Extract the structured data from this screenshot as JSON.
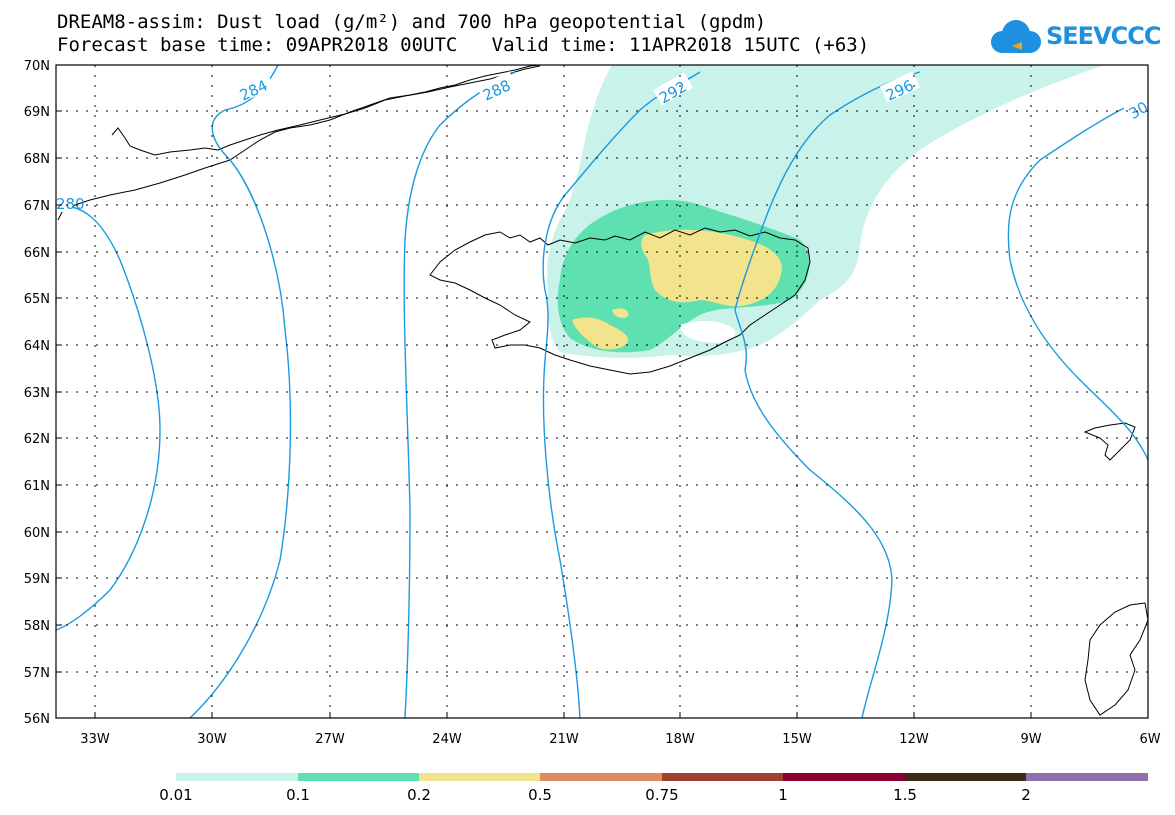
{
  "header": {
    "title_line1": "DREAM8-assim: Dust load (g/m²) and 700 hPa geopotential (gpdm)",
    "title_line2": "Forecast base time: 09APR2018 00UTC   Valid time: 11APR2018 15UTC (+63)"
  },
  "logo": {
    "text": "SEEVCCC",
    "icon": "cloud-logo-icon",
    "color": "#1e90e0"
  },
  "map": {
    "lat_labels": [
      "70N",
      "69N",
      "68N",
      "67N",
      "66N",
      "65N",
      "64N",
      "63N",
      "62N",
      "61N",
      "60N",
      "59N",
      "58N",
      "57N",
      "56N"
    ],
    "lon_labels": [
      "33W",
      "30W",
      "27W",
      "24W",
      "21W",
      "18W",
      "15W",
      "12W",
      "9W",
      "6W"
    ],
    "contour_labels": [
      "280",
      "284",
      "288",
      "292",
      "296",
      "30"
    ],
    "contour_color": "#1a9ae0",
    "dust_colors": {
      "low": "#c8f2ea",
      "mid": "#5fe0b0",
      "high": "#f2e48c"
    }
  },
  "colorbar": {
    "labels": [
      "0.01",
      "0.1",
      "0.2",
      "0.5",
      "0.75",
      "1",
      "1.5",
      "2"
    ],
    "colors": [
      "#c8f2ea",
      "#5fe0b0",
      "#f2e48c",
      "#e08a60",
      "#a04030",
      "#8a0030",
      "#3e2a12",
      "#9070a8"
    ]
  }
}
